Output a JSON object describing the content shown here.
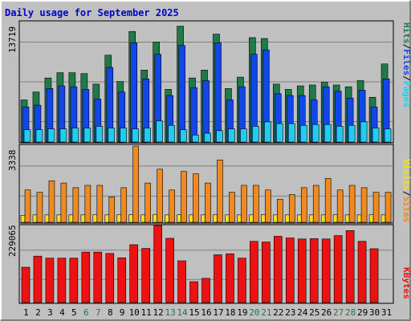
{
  "title": "Daily usage for September 2025",
  "colors": {
    "background": "#c0c0c0",
    "title": "#0000cc",
    "hits": "#1f7a4a",
    "files": "#1346e8",
    "pages": "#22ccee",
    "visits": "#f5e020",
    "sites": "#f08a20",
    "kbytes": "#ee1111",
    "weekend_label": "#1a7a4a"
  },
  "right_labels": {
    "top": [
      "Hits",
      "/",
      "Files",
      "/",
      "Pages"
    ],
    "middle": [
      "Visits",
      "/",
      "Sites"
    ],
    "bottom": [
      "KBytes"
    ]
  },
  "chart_data": [
    {
      "type": "bar",
      "categories": [
        "1",
        "2",
        "3",
        "4",
        "5",
        "6",
        "7",
        "8",
        "9",
        "10",
        "11",
        "12",
        "13",
        "14",
        "15",
        "16",
        "17",
        "18",
        "19",
        "20",
        "21",
        "22",
        "23",
        "24",
        "25",
        "26",
        "27",
        "28",
        "29",
        "30",
        "31"
      ],
      "weekend_days": [
        "6",
        "7",
        "13",
        "14",
        "20",
        "21",
        "27",
        "28"
      ],
      "ytick_label": "13719",
      "ylim": [
        0,
        13719
      ],
      "series": [
        {
          "name": "Hits",
          "values": [
            4800,
            5700,
            7300,
            7900,
            7900,
            7800,
            6600,
            9900,
            6900,
            12600,
            8200,
            11400,
            6000,
            13200,
            7300,
            8200,
            12300,
            6100,
            7400,
            11900,
            11800,
            6600,
            6000,
            6400,
            6500,
            6800,
            6500,
            6300,
            7000,
            5100,
            8900
          ]
        },
        {
          "name": "Files",
          "values": [
            4000,
            4200,
            6100,
            6400,
            6300,
            6000,
            4900,
            8500,
            5700,
            11300,
            7200,
            10000,
            5300,
            11000,
            6200,
            7000,
            11300,
            4800,
            6300,
            10000,
            10500,
            5500,
            5300,
            5300,
            4800,
            6300,
            5800,
            5000,
            5900,
            4000,
            7200
          ]
        },
        {
          "name": "Pages",
          "values": [
            1400,
            1400,
            1500,
            1500,
            1600,
            1600,
            1800,
            1600,
            1600,
            1500,
            1600,
            2400,
            1900,
            1400,
            800,
            1000,
            1300,
            1500,
            1500,
            1800,
            2300,
            2100,
            2100,
            1900,
            2000,
            2000,
            1800,
            1900,
            2300,
            1600,
            1500
          ]
        }
      ]
    },
    {
      "type": "bar",
      "ytick_label": "3338",
      "ylim": [
        0,
        3338
      ],
      "series": [
        {
          "name": "Visits",
          "values": [
            300,
            320,
            320,
            320,
            320,
            320,
            330,
            320,
            330,
            330,
            320,
            340,
            320,
            330,
            320,
            320,
            330,
            320,
            320,
            320,
            330,
            320,
            320,
            320,
            320,
            320,
            330,
            320,
            320,
            330,
            320
          ]
        },
        {
          "name": "Sites",
          "values": [
            1400,
            1300,
            1800,
            1700,
            1500,
            1600,
            1600,
            1100,
            1500,
            3300,
            1700,
            2300,
            1400,
            2200,
            2100,
            1700,
            2700,
            1300,
            1600,
            1600,
            1400,
            1000,
            1200,
            1500,
            1600,
            1900,
            1400,
            1600,
            1500,
            1300,
            1300
          ]
        }
      ]
    },
    {
      "type": "bar",
      "ytick_label": "229065",
      "ylim": [
        0,
        229065
      ],
      "series": [
        {
          "name": "KBytes",
          "values": [
            105000,
            138000,
            132000,
            132000,
            132000,
            150000,
            150000,
            146000,
            133000,
            172000,
            161000,
            229000,
            191000,
            124000,
            62000,
            72000,
            142000,
            145000,
            132000,
            182000,
            180000,
            197000,
            192000,
            189000,
            190000,
            189000,
            199000,
            214000,
            182000,
            160000,
            0
          ]
        }
      ]
    }
  ]
}
